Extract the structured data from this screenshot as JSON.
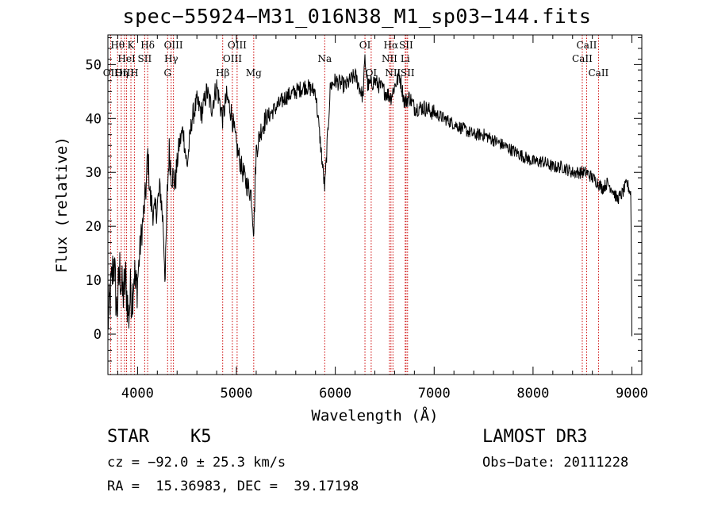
{
  "title": "spec−55924−M31_016N38_M1_sp03−144.fits",
  "info": {
    "obj_class": "STAR",
    "subclass": "K5",
    "survey": "LAMOST DR3",
    "cz_line": "cz = −92.0 ± 25.3 km/s",
    "obs_date_line": "Obs−Date: 20111228",
    "radec_line": "RA =  15.36983, DEC =  39.17198"
  },
  "chart_data": {
    "type": "line",
    "title": "spec−55924−M31_016N38_M1_sp03−144.fits",
    "xlabel": "Wavelength (Å)",
    "ylabel": "Flux (relative)",
    "xlim": [
      3700,
      9100
    ],
    "ylim": [
      -7.5,
      55.5
    ],
    "xticks": [
      4000,
      5000,
      6000,
      7000,
      8000,
      9000
    ],
    "xtick_labels": [
      "4000",
      "5000",
      "6000",
      "7000",
      "8000",
      "9000"
    ],
    "yticks": [
      0,
      10,
      20,
      30,
      40,
      50
    ],
    "ytick_labels": [
      "0",
      "10",
      "20",
      "30",
      "40",
      "50"
    ],
    "colors": {
      "spectrum": "#000000",
      "lines": "#cc0000"
    },
    "series": [
      {
        "name": "flux",
        "x": [
          3700,
          3730,
          3760,
          3790,
          3820,
          3850,
          3880,
          3910,
          3933,
          3940,
          3968,
          3980,
          4000,
          4030,
          4060,
          4090,
          4102,
          4130,
          4170,
          4200,
          4230,
          4260,
          4280,
          4300,
          4320,
          4340,
          4380,
          4420,
          4460,
          4500,
          4550,
          4600,
          4650,
          4700,
          4750,
          4800,
          4861,
          4900,
          4950,
          5000,
          5050,
          5100,
          5150,
          5175,
          5200,
          5250,
          5300,
          5400,
          5500,
          5600,
          5700,
          5800,
          5893,
          5950,
          6000,
          6100,
          6200,
          6280,
          6300,
          6330,
          6400,
          6500,
          6563,
          6600,
          6650,
          6700,
          6750,
          6800,
          6900,
          7000,
          7100,
          7200,
          7300,
          7400,
          7500,
          7600,
          7700,
          7800,
          7900,
          8000,
          8100,
          8200,
          8300,
          8400,
          8498,
          8542,
          8600,
          8662,
          8700,
          8750,
          8800,
          8850,
          8900,
          8950,
          8990,
          9000
        ],
        "values": [
          2,
          8,
          14,
          4,
          12,
          7,
          10,
          3,
          9,
          6,
          12,
          8,
          10,
          17,
          22,
          28,
          34,
          25,
          22,
          24,
          27,
          20,
          10,
          26,
          34,
          30,
          28,
          35,
          38,
          31,
          40,
          43,
          41,
          45,
          42,
          46,
          40,
          44,
          41,
          35,
          31,
          28,
          26,
          19,
          34,
          38,
          40,
          42,
          44,
          45,
          46,
          45,
          27,
          46,
          47,
          46,
          48,
          44,
          51,
          46,
          47,
          45,
          44,
          46,
          48,
          43,
          44,
          42,
          42,
          41,
          40,
          39,
          38,
          37,
          37,
          36,
          35,
          34,
          33,
          32,
          32,
          31,
          31,
          30,
          30,
          30,
          29,
          28,
          27,
          28,
          27,
          25,
          26,
          28,
          26,
          0
        ]
      }
    ],
    "annotations": [
      {
        "wavelength": 3727,
        "label": "OII",
        "row": 3
      },
      {
        "wavelength": 3798,
        "label": "Hθ",
        "row": 1
      },
      {
        "wavelength": 3835,
        "label": "Hη",
        "row": 3
      },
      {
        "wavelength": 3869,
        "label": "OIII",
        "row": 3
      },
      {
        "wavelength": 3889,
        "label": "HeI",
        "row": 2
      },
      {
        "wavelength": 3933,
        "label": "K",
        "row": 1
      },
      {
        "wavelength": 3968,
        "label": "H",
        "row": 3
      },
      {
        "wavelength": 4072,
        "label": "SII",
        "row": 2
      },
      {
        "wavelength": 4102,
        "label": "Hδ",
        "row": 1
      },
      {
        "wavelength": 4304,
        "label": "G",
        "row": 3
      },
      {
        "wavelength": 4340,
        "label": "Hγ",
        "row": 2
      },
      {
        "wavelength": 4363,
        "label": "OIII",
        "row": 1
      },
      {
        "wavelength": 4861,
        "label": "Hβ",
        "row": 3
      },
      {
        "wavelength": 4959,
        "label": "OIII",
        "row": 2
      },
      {
        "wavelength": 5007,
        "label": "OIII",
        "row": 1
      },
      {
        "wavelength": 5175,
        "label": "Mg",
        "row": 3
      },
      {
        "wavelength": 5893,
        "label": "Na",
        "row": 2
      },
      {
        "wavelength": 6300,
        "label": "OI",
        "row": 1
      },
      {
        "wavelength": 6363,
        "label": "OI",
        "row": 3
      },
      {
        "wavelength": 6548,
        "label": "NII",
        "row": 2
      },
      {
        "wavelength": 6563,
        "label": "Hα",
        "row": 1
      },
      {
        "wavelength": 6583,
        "label": "NII",
        "row": 3
      },
      {
        "wavelength": 6707,
        "label": "Li",
        "row": 2
      },
      {
        "wavelength": 6716,
        "label": "SII",
        "row": 1
      },
      {
        "wavelength": 6731,
        "label": "SII",
        "row": 3
      },
      {
        "wavelength": 8498,
        "label": "CaII",
        "row": 2
      },
      {
        "wavelength": 8542,
        "label": "CaII",
        "row": 1
      },
      {
        "wavelength": 8662,
        "label": "CaII",
        "row": 3
      }
    ]
  }
}
